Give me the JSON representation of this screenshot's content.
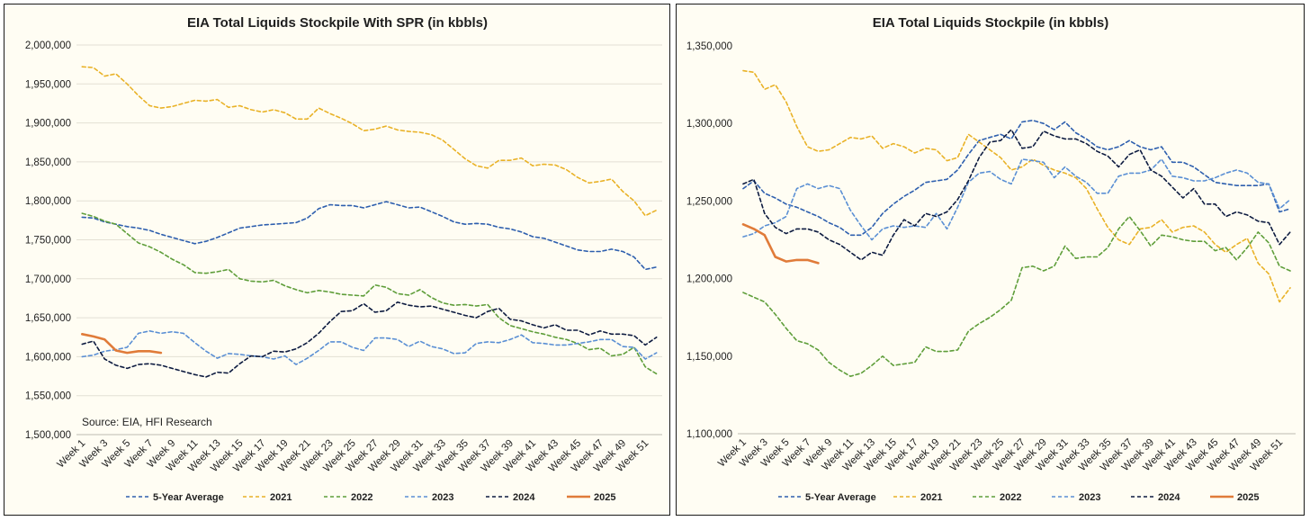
{
  "legend": [
    "5-Year Average",
    "2021",
    "2022",
    "2023",
    "2024",
    "2025"
  ],
  "series_colors": {
    "5-Year Average": "#2e5fae",
    "2021": "#e9b227",
    "2022": "#5f9e3a",
    "2023": "#5a8fd4",
    "2024": "#0d1b40",
    "2025": "#e07b39"
  },
  "chart_data": [
    {
      "type": "line",
      "title": "EIA Total Liquids Stockpile With SPR (in kbbls)",
      "annotation": "Source: EIA, HFI Research",
      "ylim": [
        1500000,
        2000000
      ],
      "y_ticks": [
        "1,500,000",
        "1,550,000",
        "1,600,000",
        "1,650,000",
        "1,700,000",
        "1,750,000",
        "1,800,000",
        "1,850,000",
        "1,900,000",
        "1,950,000",
        "2,000,000"
      ],
      "x_ticks": [
        "Week 1",
        "Week 3",
        "Week 5",
        "Week 7",
        "Week 9",
        "Week 11",
        "Week 13",
        "Week 15",
        "Week 17",
        "Week 19",
        "Week 21",
        "Week 23",
        "Week 25",
        "Week 27",
        "Week 29",
        "Week 31",
        "Week 33",
        "Week 35",
        "Week 37",
        "Week 39",
        "Week 41",
        "Week 43",
        "Week 45",
        "Week 47",
        "Week 49",
        "Week 51"
      ],
      "grid": true,
      "legend_position": "bottom",
      "series": [
        {
          "name": "5-Year Average",
          "dash": true,
          "values": [
            1779000,
            1778000,
            1773000,
            1770000,
            1767000,
            1765000,
            1762000,
            1757000,
            1753000,
            1749000,
            1745000,
            1748000,
            1753000,
            1759000,
            1765000,
            1767000,
            1769000,
            1770000,
            1771000,
            1772000,
            1778000,
            1790000,
            1795000,
            1794000,
            1794000,
            1791000,
            1795000,
            1799000,
            1795000,
            1791000,
            1792000,
            1786000,
            1780000,
            1773000,
            1770000,
            1771000,
            1770000,
            1766000,
            1764000,
            1760000,
            1754000,
            1752000,
            1747000,
            1742000,
            1737000,
            1735000,
            1735000,
            1738000,
            1735000,
            1728000,
            1712000,
            1715000
          ]
        },
        {
          "name": "2021",
          "dash": true,
          "values": [
            1972000,
            1971000,
            1960000,
            1963000,
            1950000,
            1935000,
            1922000,
            1919000,
            1921000,
            1925000,
            1929000,
            1928000,
            1930000,
            1920000,
            1922000,
            1917000,
            1914000,
            1917000,
            1913000,
            1905000,
            1905000,
            1919000,
            1912000,
            1906000,
            1899000,
            1890000,
            1892000,
            1896000,
            1891000,
            1889000,
            1888000,
            1885000,
            1878000,
            1866000,
            1854000,
            1845000,
            1842000,
            1852000,
            1852000,
            1855000,
            1845000,
            1847000,
            1846000,
            1840000,
            1830000,
            1823000,
            1825000,
            1828000,
            1812000,
            1800000,
            1781000,
            1788000
          ]
        },
        {
          "name": "2022",
          "dash": true,
          "values": [
            1784000,
            1780000,
            1774000,
            1770000,
            1758000,
            1746000,
            1741000,
            1734000,
            1725000,
            1718000,
            1708000,
            1707000,
            1709000,
            1712000,
            1700000,
            1697000,
            1696000,
            1698000,
            1691000,
            1686000,
            1682000,
            1685000,
            1683000,
            1680000,
            1679000,
            1678000,
            1692000,
            1689000,
            1681000,
            1679000,
            1686000,
            1676000,
            1669000,
            1666000,
            1667000,
            1665000,
            1667000,
            1650000,
            1640000,
            1636000,
            1632000,
            1629000,
            1625000,
            1622000,
            1617000,
            1609000,
            1611000,
            1601000,
            1603000,
            1612000,
            1587000,
            1578000
          ]
        },
        {
          "name": "2023",
          "dash": true,
          "values": [
            1600000,
            1602000,
            1607000,
            1609000,
            1612000,
            1630000,
            1633000,
            1630000,
            1632000,
            1630000,
            1618000,
            1607000,
            1598000,
            1604000,
            1603000,
            1601000,
            1600000,
            1597000,
            1601000,
            1590000,
            1598000,
            1608000,
            1619000,
            1619000,
            1612000,
            1608000,
            1624000,
            1624000,
            1622000,
            1613000,
            1620000,
            1613000,
            1610000,
            1604000,
            1605000,
            1617000,
            1619000,
            1618000,
            1622000,
            1628000,
            1618000,
            1617000,
            1615000,
            1615000,
            1617000,
            1619000,
            1622000,
            1622000,
            1613000,
            1612000,
            1597000,
            1605000
          ]
        },
        {
          "name": "2024",
          "dash": true,
          "values": [
            1616000,
            1620000,
            1597000,
            1589000,
            1585000,
            1590000,
            1591000,
            1589000,
            1585000,
            1581000,
            1577000,
            1574000,
            1580000,
            1579000,
            1591000,
            1601000,
            1600000,
            1607000,
            1606000,
            1610000,
            1618000,
            1630000,
            1645000,
            1658000,
            1659000,
            1668000,
            1657000,
            1659000,
            1670000,
            1666000,
            1664000,
            1665000,
            1661000,
            1657000,
            1653000,
            1650000,
            1658000,
            1662000,
            1648000,
            1646000,
            1641000,
            1637000,
            1641000,
            1634000,
            1634000,
            1628000,
            1633000,
            1629000,
            1629000,
            1627000,
            1615000,
            1625000
          ]
        },
        {
          "name": "2025",
          "dash": false,
          "values": [
            1629000,
            1626000,
            1622000,
            1608000,
            1605000,
            1607000,
            1607000,
            1605000
          ]
        }
      ]
    },
    {
      "type": "line",
      "title": "EIA Total Liquids Stockpile (in kbbls)",
      "ylim": [
        1100000,
        1350000
      ],
      "y_ticks": [
        "1,100,000",
        "1,150,000",
        "1,200,000",
        "1,250,000",
        "1,300,000",
        "1,350,000"
      ],
      "x_ticks": [
        "Week 1",
        "Week 3",
        "Week 5",
        "Week 7",
        "Week 9",
        "Week 11",
        "Week 13",
        "Week 15",
        "Week 17",
        "Week 19",
        "Week 21",
        "Week 23",
        "Week 25",
        "Week 27",
        "Week 29",
        "Week 31",
        "Week 33",
        "Week 35",
        "Week 37",
        "Week 39",
        "Week 41",
        "Week 43",
        "Week 45",
        "Week 47",
        "Week 49",
        "Week 51"
      ],
      "grid": false,
      "legend_position": "bottom",
      "series": [
        {
          "name": "5-Year Average",
          "dash": true,
          "values": [
            1258000,
            1263000,
            1255000,
            1252000,
            1248000,
            1246000,
            1243000,
            1240000,
            1236000,
            1233000,
            1228000,
            1228000,
            1233000,
            1242000,
            1248000,
            1253000,
            1257000,
            1262000,
            1263000,
            1264000,
            1270000,
            1280000,
            1289000,
            1291000,
            1293000,
            1290000,
            1301000,
            1302000,
            1300000,
            1296000,
            1301000,
            1294000,
            1290000,
            1285000,
            1283000,
            1285000,
            1289000,
            1285000,
            1283000,
            1285000,
            1275000,
            1275000,
            1272000,
            1267000,
            1262000,
            1261000,
            1260000,
            1260000,
            1260000,
            1261000,
            1243000,
            1245000
          ]
        },
        {
          "name": "2021",
          "dash": true,
          "values": [
            1334000,
            1333000,
            1322000,
            1325000,
            1314000,
            1298000,
            1285000,
            1282000,
            1283000,
            1287000,
            1291000,
            1290000,
            1292000,
            1284000,
            1287000,
            1285000,
            1281000,
            1284000,
            1283000,
            1276000,
            1278000,
            1293000,
            1288000,
            1283000,
            1278000,
            1270000,
            1272000,
            1277000,
            1273000,
            1270000,
            1268000,
            1265000,
            1258000,
            1245000,
            1233000,
            1225000,
            1222000,
            1232000,
            1233000,
            1238000,
            1230000,
            1233000,
            1234000,
            1230000,
            1222000,
            1217000,
            1222000,
            1226000,
            1210000,
            1203000,
            1185000,
            1194000
          ]
        },
        {
          "name": "2022",
          "dash": true,
          "values": [
            1191000,
            1188000,
            1185000,
            1177000,
            1168000,
            1160000,
            1158000,
            1154000,
            1146000,
            1141000,
            1137000,
            1139000,
            1144000,
            1150000,
            1144000,
            1145000,
            1146000,
            1156000,
            1153000,
            1153000,
            1154000,
            1166000,
            1171000,
            1175000,
            1180000,
            1186000,
            1207000,
            1208000,
            1205000,
            1208000,
            1221000,
            1213000,
            1214000,
            1214000,
            1220000,
            1232000,
            1240000,
            1231000,
            1221000,
            1228000,
            1227000,
            1225000,
            1224000,
            1224000,
            1218000,
            1220000,
            1212000,
            1220000,
            1230000,
            1223000,
            1208000,
            1205000
          ]
        },
        {
          "name": "2023",
          "dash": true,
          "values": [
            1227000,
            1229000,
            1234000,
            1236000,
            1240000,
            1258000,
            1261000,
            1258000,
            1260000,
            1258000,
            1244000,
            1234000,
            1225000,
            1232000,
            1234000,
            1233000,
            1234000,
            1233000,
            1242000,
            1232000,
            1246000,
            1262000,
            1268000,
            1269000,
            1264000,
            1261000,
            1277000,
            1276000,
            1275000,
            1265000,
            1272000,
            1266000,
            1262000,
            1255000,
            1255000,
            1266000,
            1268000,
            1268000,
            1270000,
            1277000,
            1266000,
            1265000,
            1263000,
            1263000,
            1265000,
            1268000,
            1270000,
            1268000,
            1262000,
            1261000,
            1245000,
            1251000
          ]
        },
        {
          "name": "2024",
          "dash": true,
          "values": [
            1261000,
            1264000,
            1242000,
            1233000,
            1229000,
            1232000,
            1232000,
            1230000,
            1225000,
            1222000,
            1217000,
            1212000,
            1217000,
            1215000,
            1228000,
            1238000,
            1234000,
            1242000,
            1240000,
            1243000,
            1251000,
            1263000,
            1278000,
            1288000,
            1289000,
            1296000,
            1284000,
            1285000,
            1295000,
            1292000,
            1290000,
            1290000,
            1287000,
            1282000,
            1279000,
            1272000,
            1280000,
            1283000,
            1270000,
            1266000,
            1259000,
            1252000,
            1258000,
            1248000,
            1248000,
            1240000,
            1243000,
            1241000,
            1237000,
            1236000,
            1222000,
            1230000
          ]
        },
        {
          "name": "2025",
          "dash": false,
          "values": [
            1235000,
            1232000,
            1228000,
            1214000,
            1211000,
            1212000,
            1212000,
            1210000
          ]
        }
      ]
    }
  ]
}
